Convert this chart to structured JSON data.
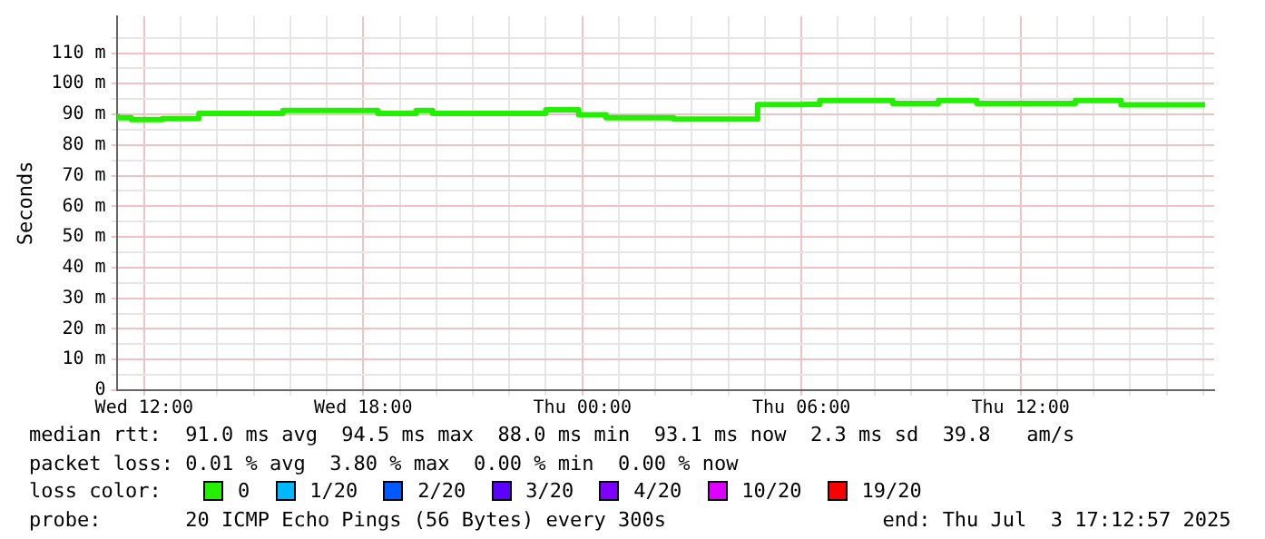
{
  "chart_data": {
    "type": "step",
    "ylabel": "Seconds",
    "legend_title": "loss color:",
    "legend": "bottom",
    "grid": true,
    "marker": "none",
    "xlim": [
      "2025-07-02T11:15",
      "2025-07-03T17:18"
    ],
    "ylim": [
      0,
      122
    ],
    "xticks": [
      {
        "value": "2025-07-02T12:00",
        "label": "Wed 12:00"
      },
      {
        "value": "2025-07-02T13:00",
        "label": null
      },
      {
        "value": "2025-07-02T14:00",
        "label": null
      },
      {
        "value": "2025-07-02T15:00",
        "label": null
      },
      {
        "value": "2025-07-02T16:00",
        "label": null
      },
      {
        "value": "2025-07-02T17:00",
        "label": null
      },
      {
        "value": "2025-07-02T18:00",
        "label": "Wed 18:00"
      },
      {
        "value": "2025-07-02T19:00",
        "label": null
      },
      {
        "value": "2025-07-02T20:00",
        "label": null
      },
      {
        "value": "2025-07-02T21:00",
        "label": null
      },
      {
        "value": "2025-07-02T22:00",
        "label": null
      },
      {
        "value": "2025-07-02T23:00",
        "label": null
      },
      {
        "value": "2025-07-03T00:00",
        "label": "Thu 00:00"
      },
      {
        "value": "2025-07-03T01:00",
        "label": null
      },
      {
        "value": "2025-07-03T02:00",
        "label": null
      },
      {
        "value": "2025-07-03T03:00",
        "label": null
      },
      {
        "value": "2025-07-03T04:00",
        "label": null
      },
      {
        "value": "2025-07-03T05:00",
        "label": null
      },
      {
        "value": "2025-07-03T06:00",
        "label": "Thu 06:00"
      },
      {
        "value": "2025-07-03T07:00",
        "label": null
      },
      {
        "value": "2025-07-03T08:00",
        "label": null
      },
      {
        "value": "2025-07-03T09:00",
        "label": null
      },
      {
        "value": "2025-07-03T10:00",
        "label": null
      },
      {
        "value": "2025-07-03T11:00",
        "label": null
      },
      {
        "value": "2025-07-03T12:00",
        "label": "Thu 12:00"
      },
      {
        "value": "2025-07-03T13:00",
        "label": null
      },
      {
        "value": "2025-07-03T14:00",
        "label": null
      },
      {
        "value": "2025-07-03T15:00",
        "label": null
      },
      {
        "value": "2025-07-03T16:00",
        "label": null
      },
      {
        "value": "2025-07-03T17:00",
        "label": null
      }
    ],
    "yticks": [
      {
        "value": 0,
        "label": "0"
      },
      {
        "value": 5,
        "label": null
      },
      {
        "value": 10,
        "label": "10 m"
      },
      {
        "value": 15,
        "label": null
      },
      {
        "value": 20,
        "label": "20 m"
      },
      {
        "value": 25,
        "label": null
      },
      {
        "value": 30,
        "label": "30 m"
      },
      {
        "value": 35,
        "label": null
      },
      {
        "value": 40,
        "label": "40 m"
      },
      {
        "value": 45,
        "label": null
      },
      {
        "value": 50,
        "label": "50 m"
      },
      {
        "value": 55,
        "label": null
      },
      {
        "value": 60,
        "label": "60 m"
      },
      {
        "value": 65,
        "label": null
      },
      {
        "value": 70,
        "label": "70 m"
      },
      {
        "value": 75,
        "label": null
      },
      {
        "value": 80,
        "label": "80 m"
      },
      {
        "value": 85,
        "label": null
      },
      {
        "value": 90,
        "label": "90 m"
      },
      {
        "value": 95,
        "label": null
      },
      {
        "value": 100,
        "label": "100 m"
      },
      {
        "value": 105,
        "label": null
      },
      {
        "value": 110,
        "label": "110 m"
      },
      {
        "value": 115,
        "label": null
      }
    ],
    "x": [
      "2025-07-02T11:15",
      "2025-07-02T11:39",
      "2025-07-02T12:30",
      "2025-07-02T13:30",
      "2025-07-02T15:48",
      "2025-07-02T18:24",
      "2025-07-02T19:27",
      "2025-07-02T19:54",
      "2025-07-02T23:00",
      "2025-07-02T23:54",
      "2025-07-03T00:39",
      "2025-07-03T02:30",
      "2025-07-03T04:48",
      "2025-07-03T06:03",
      "2025-07-03T06:30",
      "2025-07-03T08:30",
      "2025-07-03T09:45",
      "2025-07-03T10:48",
      "2025-07-03T13:30",
      "2025-07-03T14:45",
      "2025-07-03T16:30",
      "2025-07-03T17:03"
    ],
    "series": [
      {
        "name": "0",
        "color": "#22f000",
        "values": [
          90.3,
          88.9,
          88.3,
          88.6,
          90.3,
          91.3,
          90.3,
          91.3,
          90.3,
          91.5,
          89.9,
          88.9,
          88.5,
          93.2,
          93.3,
          94.5,
          93.6,
          94.5,
          93.6,
          94.5,
          93.1,
          93.1
        ]
      },
      {
        "name": "1/20",
        "color": "#00b8ff",
        "values": [
          null,
          null,
          null,
          null,
          null,
          null,
          null,
          null,
          null,
          null,
          null,
          null,
          null,
          null,
          null,
          null,
          null,
          null,
          null,
          null,
          null,
          null
        ]
      },
      {
        "name": "2/20",
        "color": "#0059ff",
        "values": [
          null,
          null,
          null,
          null,
          null,
          null,
          null,
          null,
          null,
          null,
          null,
          null,
          null,
          null,
          null,
          null,
          null,
          null,
          null,
          null,
          null,
          null
        ]
      },
      {
        "name": "3/20",
        "color": "#5e00ff",
        "values": [
          null,
          null,
          null,
          null,
          null,
          null,
          null,
          null,
          null,
          null,
          null,
          null,
          null,
          null,
          null,
          null,
          null,
          null,
          null,
          null,
          null,
          null
        ]
      },
      {
        "name": "4/20",
        "color": "#7e00ff",
        "values": [
          null,
          null,
          null,
          null,
          null,
          null,
          null,
          null,
          null,
          null,
          null,
          null,
          null,
          null,
          null,
          null,
          null,
          null,
          null,
          null,
          null,
          null
        ]
      },
      {
        "name": "10/20",
        "color": "#dd00ff",
        "values": [
          null,
          null,
          null,
          null,
          null,
          null,
          null,
          null,
          null,
          null,
          null,
          null,
          null,
          null,
          null,
          null,
          null,
          null,
          null,
          null,
          null,
          null
        ]
      },
      {
        "name": "19/20",
        "color": "#ff0000",
        "values": [
          null,
          null,
          null,
          null,
          null,
          null,
          null,
          null,
          null,
          null,
          null,
          null,
          null,
          null,
          null,
          null,
          null,
          null,
          null,
          null,
          null,
          null
        ]
      }
    ],
    "annotations": [
      "median rtt:  91.0 ms avg  94.5 ms max  88.0 ms min  93.1 ms now  2.3 ms sd  39.8   am/s",
      "packet loss: 0.01 % avg  3.80 % max  0.00 % min  0.00 % now",
      "probe:       20 ICMP Echo Pings (56 Bytes) every 300s                  end: Thu Jul  3 17:12:57 2025"
    ]
  }
}
